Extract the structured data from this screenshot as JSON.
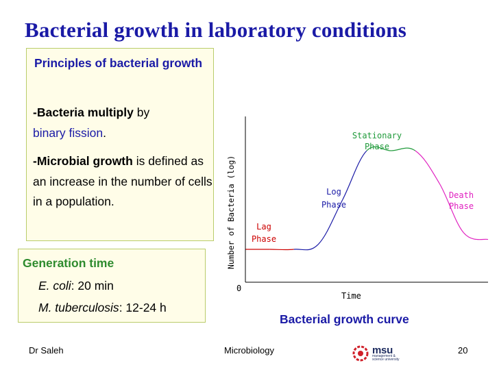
{
  "slide": {
    "title": "Bacterial growth in laboratory conditions",
    "principles": {
      "heading": "Principles of bacterial growth",
      "p1_bold": "-Bacteria multiply",
      "p1_plain": " by",
      "p1_colored": "binary fission",
      "p1_end": ".",
      "p2_bold": "-Microbial growth",
      "p2_plain": " is defined as an increase in the number of cells in a population."
    },
    "generation": {
      "heading": "Generation time",
      "ecoli_name": "E. coli",
      "ecoli_value": ": 20 min",
      "mtb_name": "M. tuberculosis",
      "mtb_value": ": 12-24 h"
    },
    "caption": "Bacterial growth curve",
    "footer": {
      "left": "Dr Saleh",
      "center": "Microbiology",
      "page": "20"
    },
    "logo": {
      "name": "msu",
      "sub_line1": "management &",
      "sub_line2": "science university"
    }
  },
  "chart_data": {
    "type": "line",
    "title": "",
    "xlabel": "Time",
    "ylabel": "Number of Bacteria (log)",
    "origin_label": "0",
    "phases": [
      {
        "name": "Lag Phase",
        "line1": "Lag",
        "line2": "Phase",
        "color": "#cc0000"
      },
      {
        "name": "Log Phase",
        "line1": "Log",
        "line2": "Phase",
        "color": "#1a1aa6"
      },
      {
        "name": "Stationary Phase",
        "line1": "Stationary",
        "line2": "Phase",
        "color": "#1f9a3a"
      },
      {
        "name": "Death Phase",
        "line1": "Death",
        "line2": "Phase",
        "color": "#e020c0"
      }
    ],
    "x": [
      0,
      1,
      2,
      3,
      4,
      5,
      6,
      7,
      8,
      9,
      10
    ],
    "y": [
      2,
      2,
      2,
      2.3,
      5,
      8,
      8,
      8,
      6,
      3,
      2.6
    ],
    "segment_colors": [
      "#cc0000",
      "#cc0000",
      "#1a1aa6",
      "#1a1aa6",
      "#1a1aa6",
      "#1f9a3a",
      "#1f9a3a",
      "#e020c0",
      "#e020c0",
      "#e020c0"
    ],
    "xlim": [
      0,
      10
    ],
    "ylim": [
      0,
      10
    ],
    "grid": false
  }
}
